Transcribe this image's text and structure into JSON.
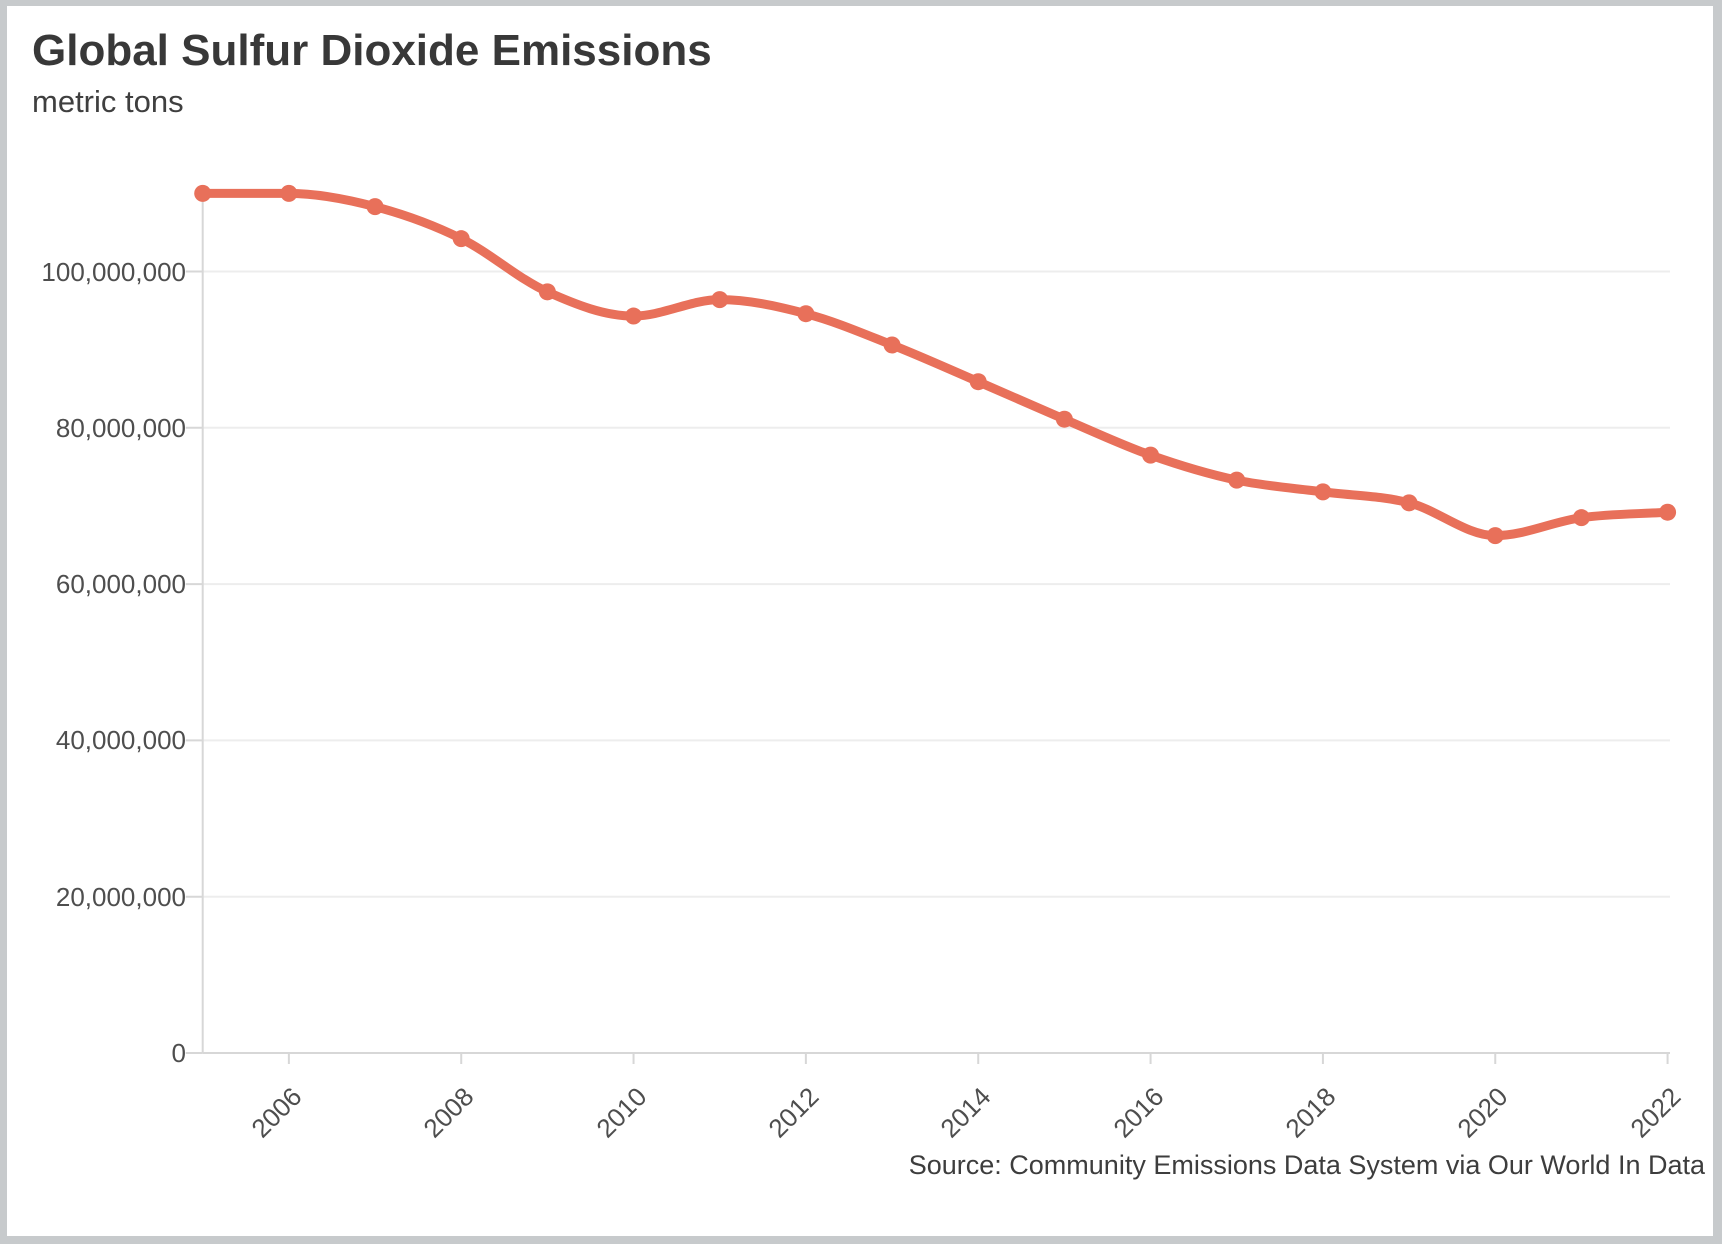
{
  "header": {
    "title": "Global Sulfur Dioxide Emissions",
    "subtitle": "metric tons"
  },
  "source": {
    "text": "Source: Community Emissions Data System via Our World In Data"
  },
  "colors": {
    "line": "#e8705a",
    "marker": "#e8705a",
    "grid": "#ededed",
    "axis": "#d7d7d7",
    "frame": "#c7cacc",
    "card": "#ffffff",
    "title_text": "#383838",
    "axis_text": "#4e4e4e",
    "source_text": "#3d3d3d"
  },
  "chart_data": {
    "type": "line",
    "title": "Global Sulfur Dioxide Emissions",
    "subtitle": "metric tons",
    "ylabel": "metric tons",
    "xlabel": "",
    "series_name": "Global sulfur dioxide emissions",
    "x": [
      2005,
      2006,
      2007,
      2008,
      2009,
      2010,
      2011,
      2012,
      2013,
      2014,
      2015,
      2016,
      2017,
      2018,
      2019,
      2020,
      2021,
      2022
    ],
    "values": [
      110000000,
      110000000,
      108300000,
      104200000,
      97400000,
      94300000,
      96400000,
      94600000,
      90600000,
      85900000,
      81100000,
      76500000,
      73300000,
      71800000,
      70400000,
      66200000,
      68500000,
      69200000
    ],
    "ylim": [
      0,
      111000000
    ],
    "y_ticks": [
      0,
      20000000,
      40000000,
      60000000,
      80000000,
      100000000
    ],
    "y_tick_labels": [
      "0",
      "20,000,000",
      "40,000,000",
      "60,000,000",
      "80,000,000",
      "100,000,000"
    ],
    "x_tick_years": [
      2006,
      2008,
      2010,
      2012,
      2014,
      2016,
      2018,
      2020,
      2022
    ],
    "x_tick_labels": [
      "2006",
      "2008",
      "2010",
      "2012",
      "2014",
      "2016",
      "2018",
      "2020",
      "2022"
    ],
    "grid": "horizontal",
    "legend": "none",
    "marker": "circle",
    "curve": "monotone"
  }
}
